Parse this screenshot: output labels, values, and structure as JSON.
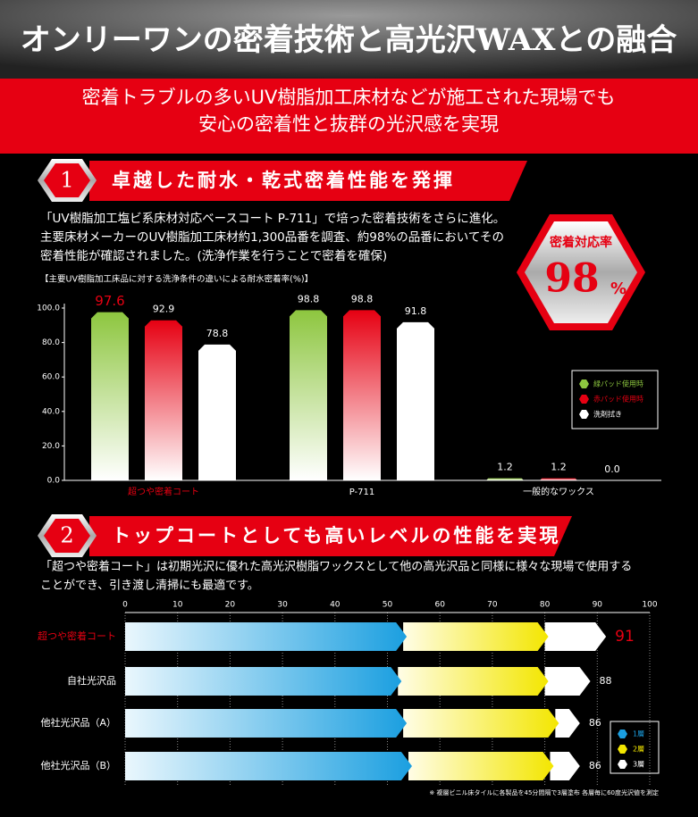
{
  "header": {
    "title": "オンリーワンの密着技術と高光沢WAXとの融合",
    "subtitle_lines": [
      "密着トラブルの多いUV樹脂加工床材などが施工された現場でも",
      "安心の密着性と抜群の光沢感を実現"
    ]
  },
  "section1": {
    "number": "1",
    "heading": "卓越した耐水・乾式密着性能を発揮",
    "paragraph_lines": [
      "「UV樹脂加工塩ビ系床材対応ベースコート P-711」で培った密着技術をさらに進化。",
      "主要床材メーカーのUV樹脂加工床材約1,300品番を調査、約98%の品番においてその",
      "密着性能が確認されました。(洗浄作業を行うことで密着を確保)"
    ],
    "badge": {
      "label": "密着対応率",
      "value": "98",
      "unit": "%"
    }
  },
  "section2": {
    "number": "2",
    "heading": "トップコートとしても高いレベルの性能を実現",
    "paragraph_lines": [
      "「超つや密着コート」は初期光沢に優れた高光沢樹脂ワックスとして他の高光沢品と同様に様々な現場で使用する",
      "ことができ、引き渡し清掃にも最適です。"
    ]
  },
  "chart_data": [
    {
      "type": "bar",
      "title": "【主要UV樹脂加工床品に対する洗浄条件の違いによる耐水密着率(%)】",
      "categories": [
        "超つや密着コート",
        "P-711",
        "一般的なワックス"
      ],
      "series": [
        {
          "name": "緑パッド使用時",
          "color": "#8dc63f",
          "values": [
            97.6,
            98.8,
            1.2
          ]
        },
        {
          "name": "赤パッド使用時",
          "color": "#e60012",
          "values": [
            92.9,
            98.8,
            1.2
          ]
        },
        {
          "name": "洗剤拭き",
          "color": "#ffffff",
          "values": [
            78.8,
            91.8,
            0
          ],
          "value_labels": [
            "78.8",
            "91.8",
            "0.0"
          ]
        }
      ],
      "ylim": [
        0,
        100
      ],
      "yticks": [
        {
          "value": 0,
          "label": "0.0"
        },
        {
          "value": 20,
          "label": "20.0"
        },
        {
          "value": 40,
          "label": "40.0"
        },
        {
          "value": 60,
          "label": "60.0"
        },
        {
          "value": 80,
          "label": "80.0"
        },
        {
          "value": 100,
          "label": "100.0"
        }
      ],
      "legend": "right"
    },
    {
      "type": "hbar_stacked",
      "categories": [
        "超つや密着コート",
        "自社光沢品",
        "他社光沢品（A）",
        "他社光沢品（B）"
      ],
      "series": [
        {
          "name": "1層",
          "color": "#1b9fe0",
          "values": [
            53,
            52,
            53,
            54
          ]
        },
        {
          "name": "2層",
          "color": "#f3e600",
          "values": [
            27,
            28,
            29,
            27
          ]
        },
        {
          "name": "3層",
          "color": "#ffffff",
          "values": [
            11,
            8,
            4,
            5
          ]
        }
      ],
      "totals": [
        91,
        88,
        86,
        86
      ],
      "xlim": [
        0,
        100
      ],
      "xticks": [
        0,
        10,
        20,
        30,
        40,
        50,
        60,
        70,
        80,
        90,
        100
      ],
      "grid": true,
      "legend": "lower right",
      "footnote": "※ 複層ビニル床タイルに各製品を45分間隔で3層塗布 各層毎に60度光沢値を測定"
    }
  ]
}
